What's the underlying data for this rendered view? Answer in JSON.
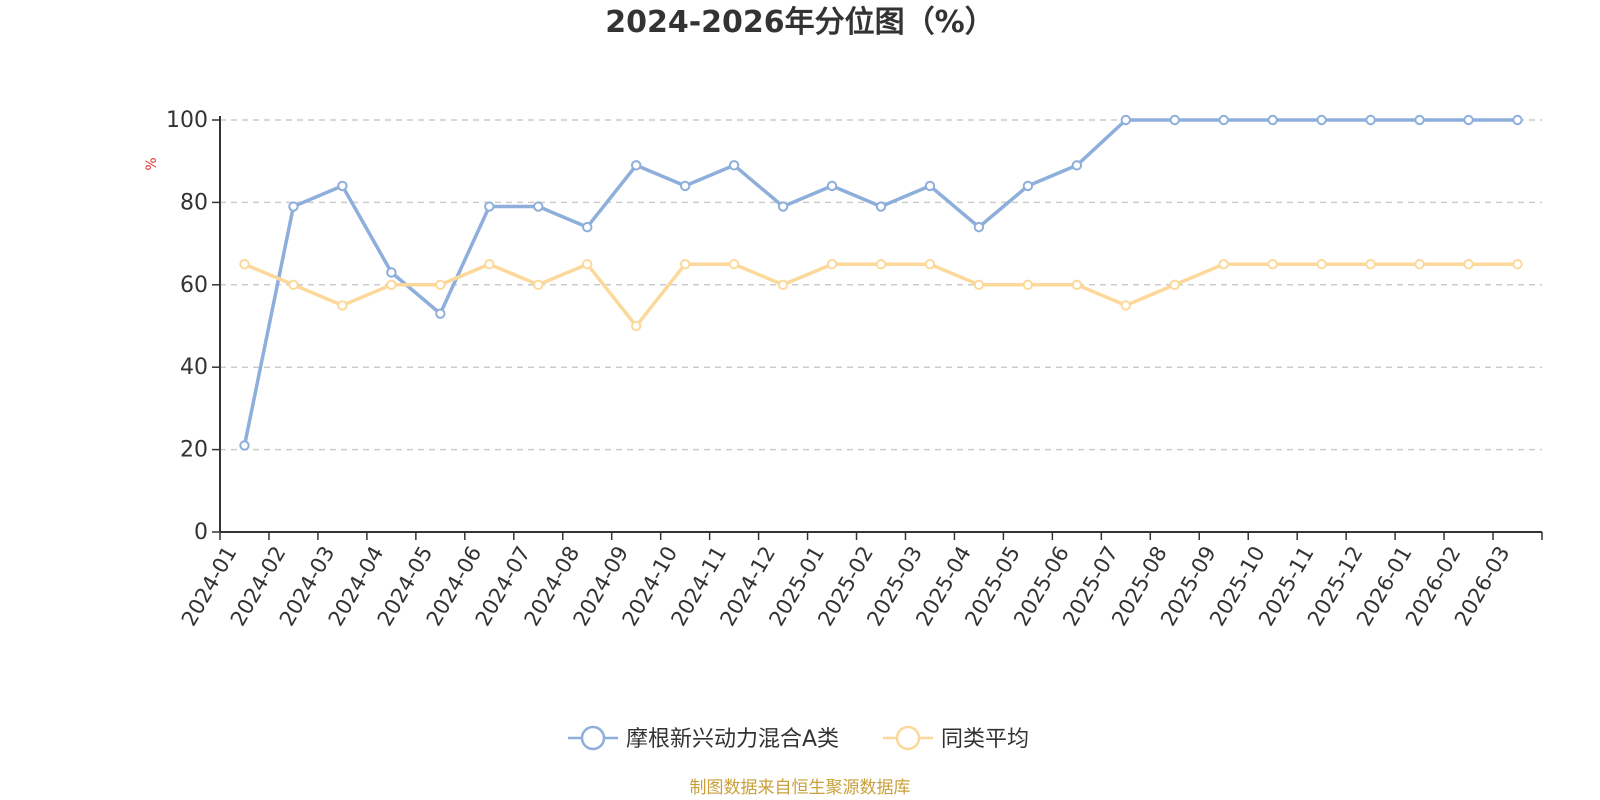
{
  "chart_data": {
    "type": "line",
    "title": "2024-2026年分位图（%）",
    "ylabel": "%",
    "ylim": [
      0,
      100
    ],
    "yticks": [
      0,
      20,
      40,
      60,
      80,
      100
    ],
    "grid": true,
    "legend_position": "bottom-center",
    "categories": [
      "2024-01",
      "2024-02",
      "2024-03",
      "2024-04",
      "2024-05",
      "2024-06",
      "2024-07",
      "2024-08",
      "2024-09",
      "2024-10",
      "2024-11",
      "2024-12",
      "2025-01",
      "2025-02",
      "2025-03",
      "2025-04",
      "2025-05",
      "2025-06",
      "2025-07",
      "2025-08",
      "2025-09",
      "2025-10",
      "2025-11",
      "2025-12",
      "2026-01",
      "2026-02",
      "2026-03"
    ],
    "series": [
      {
        "name": "摩根新兴动力混合A类",
        "color": "#8eaedb",
        "values": [
          21,
          79,
          84,
          63,
          53,
          79,
          79,
          74,
          89,
          84,
          89,
          79,
          84,
          79,
          84,
          74,
          84,
          89,
          100,
          100,
          100,
          100,
          100,
          100,
          100,
          100,
          100
        ]
      },
      {
        "name": "同类平均",
        "color": "#fcd99a",
        "values": [
          65,
          60,
          55,
          60,
          60,
          65,
          60,
          65,
          50,
          65,
          65,
          60,
          65,
          65,
          65,
          60,
          60,
          60,
          55,
          60,
          65,
          65,
          65,
          65,
          65,
          65,
          65
        ]
      }
    ],
    "source": "制图数据来自恒生聚源数据库"
  }
}
